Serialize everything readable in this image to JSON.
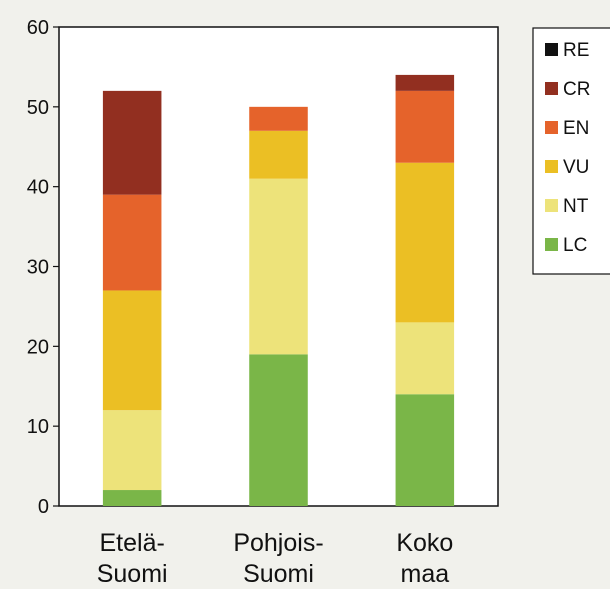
{
  "chart_data": {
    "type": "bar",
    "stacked": true,
    "title": "",
    "xlabel": "",
    "ylabel": "",
    "ylim": [
      0,
      60
    ],
    "yticks": [
      0,
      10,
      20,
      30,
      40,
      50,
      60
    ],
    "grid": false,
    "legend_position": "right",
    "categories": [
      [
        "Etelä-",
        "Suomi"
      ],
      [
        "Pohjois-",
        "Suomi"
      ],
      [
        "Koko",
        "maa"
      ]
    ],
    "series": [
      {
        "name": "LC",
        "color": "#7ab648",
        "values": [
          2,
          19,
          14
        ]
      },
      {
        "name": "NT",
        "color": "#ede37a",
        "values": [
          10,
          22,
          9
        ]
      },
      {
        "name": "VU",
        "color": "#ebbf24",
        "values": [
          15,
          6,
          20
        ]
      },
      {
        "name": "EN",
        "color": "#e5632b",
        "values": [
          12,
          3,
          9
        ]
      },
      {
        "name": "CR",
        "color": "#922f20",
        "values": [
          13,
          0,
          2
        ]
      },
      {
        "name": "RE",
        "color": "#111111",
        "values": [
          0,
          0,
          0
        ]
      }
    ],
    "legend_order": [
      "RE",
      "CR",
      "EN",
      "VU",
      "NT",
      "LC"
    ]
  }
}
